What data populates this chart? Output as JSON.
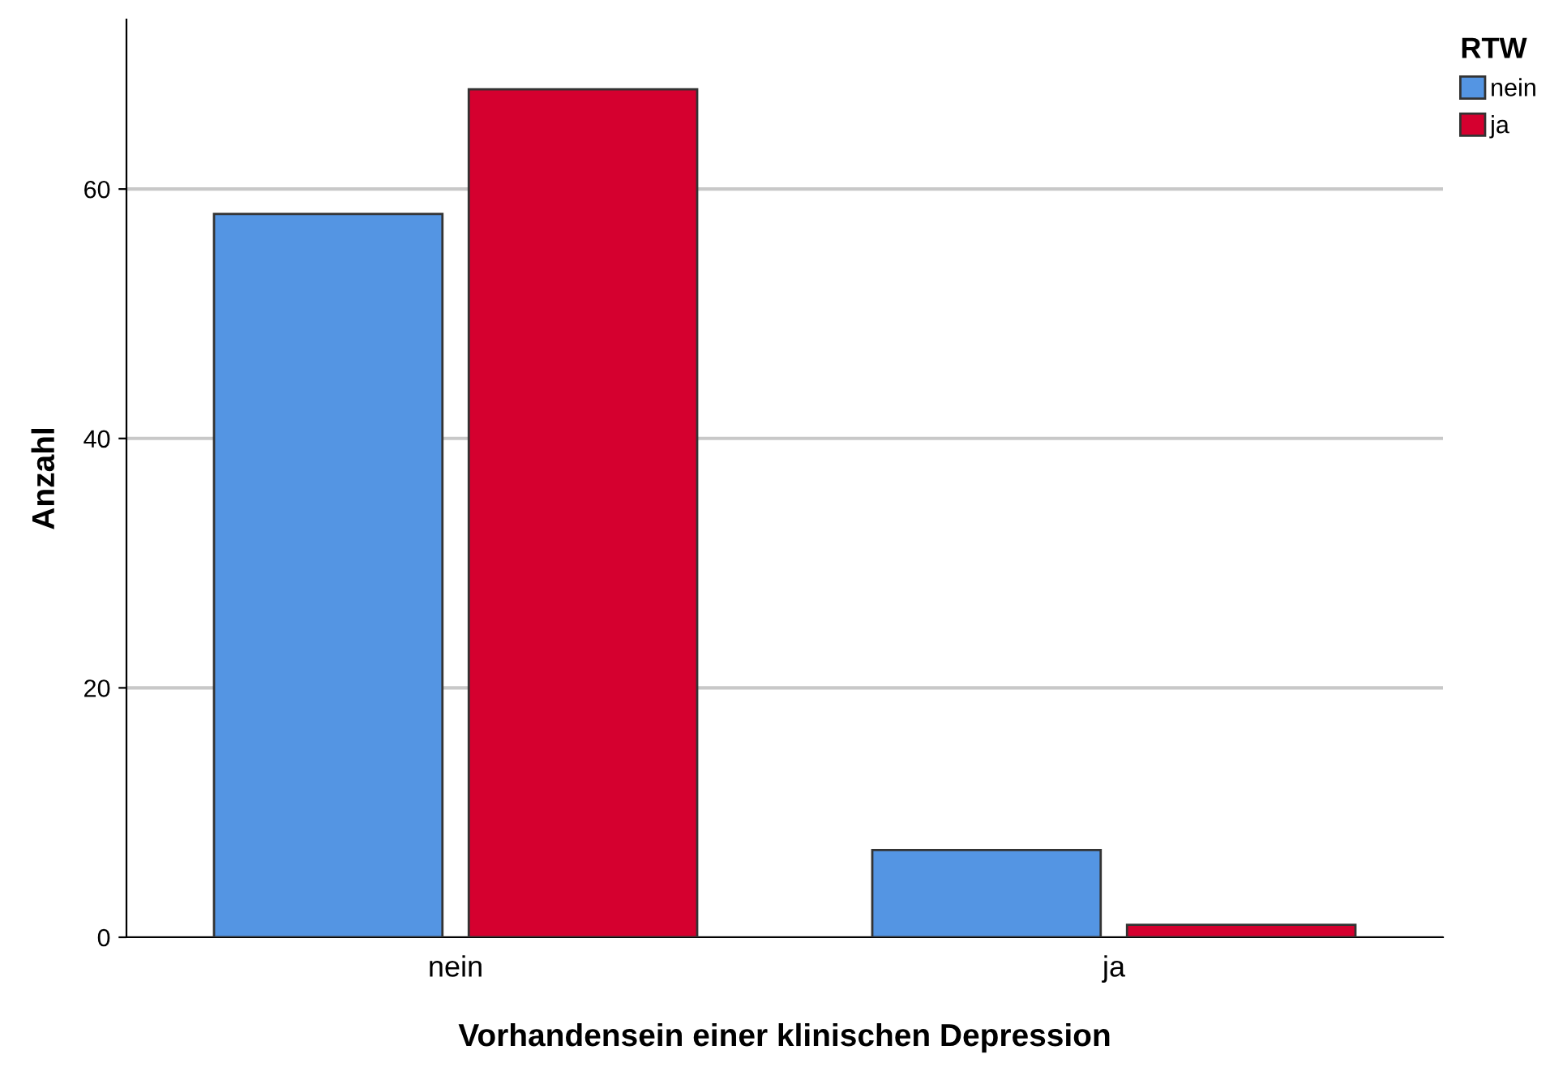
{
  "chart_data": {
    "type": "bar",
    "xlabel": "Vorhandensein einer klinischen Depression",
    "ylabel": "Anzahl",
    "legend_title": "RTW",
    "categories": [
      "nein",
      "ja"
    ],
    "series": [
      {
        "name": "nein",
        "color": "#5495e3",
        "values": [
          58,
          7
        ]
      },
      {
        "name": "ja",
        "color": "#d5002f",
        "values": [
          68,
          1
        ]
      }
    ],
    "ylim": [
      0,
      73.6
    ],
    "yticks": [
      0,
      20,
      40,
      60
    ],
    "grid": "y",
    "legend": "top right"
  }
}
